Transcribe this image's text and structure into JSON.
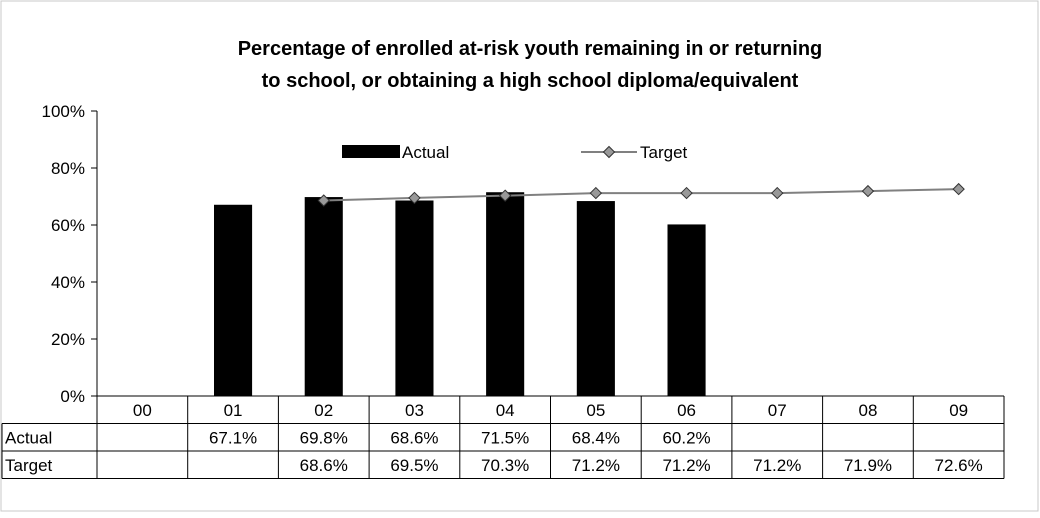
{
  "chart_data": {
    "type": "bar",
    "title_line1": "Percentage of enrolled at-risk youth remaining in or returning",
    "title_line2": "to school, or obtaining a high school diploma/equivalent",
    "categories": [
      "00",
      "01",
      "02",
      "03",
      "04",
      "05",
      "06",
      "07",
      "08",
      "09"
    ],
    "ylim": [
      0,
      100
    ],
    "y_ticks": [
      "0%",
      "20%",
      "40%",
      "60%",
      "80%",
      "100%"
    ],
    "series": [
      {
        "name": "Actual",
        "kind": "bar",
        "color": "#000000",
        "values": [
          null,
          67.1,
          69.8,
          68.6,
          71.5,
          68.4,
          60.2,
          null,
          null,
          null
        ],
        "labels": [
          "",
          "67.1%",
          "69.8%",
          "68.6%",
          "71.5%",
          "68.4%",
          "60.2%",
          "",
          "",
          ""
        ]
      },
      {
        "name": "Target",
        "kind": "line",
        "color": "#808080",
        "marker_color": "#999999",
        "values": [
          null,
          null,
          68.6,
          69.5,
          70.3,
          71.2,
          71.2,
          71.2,
          71.9,
          72.6
        ],
        "labels": [
          "",
          "",
          "68.6%",
          "69.5%",
          "70.3%",
          "71.2%",
          "71.2%",
          "71.2%",
          "71.9%",
          "72.6%"
        ]
      }
    ],
    "legend_position": "top"
  }
}
